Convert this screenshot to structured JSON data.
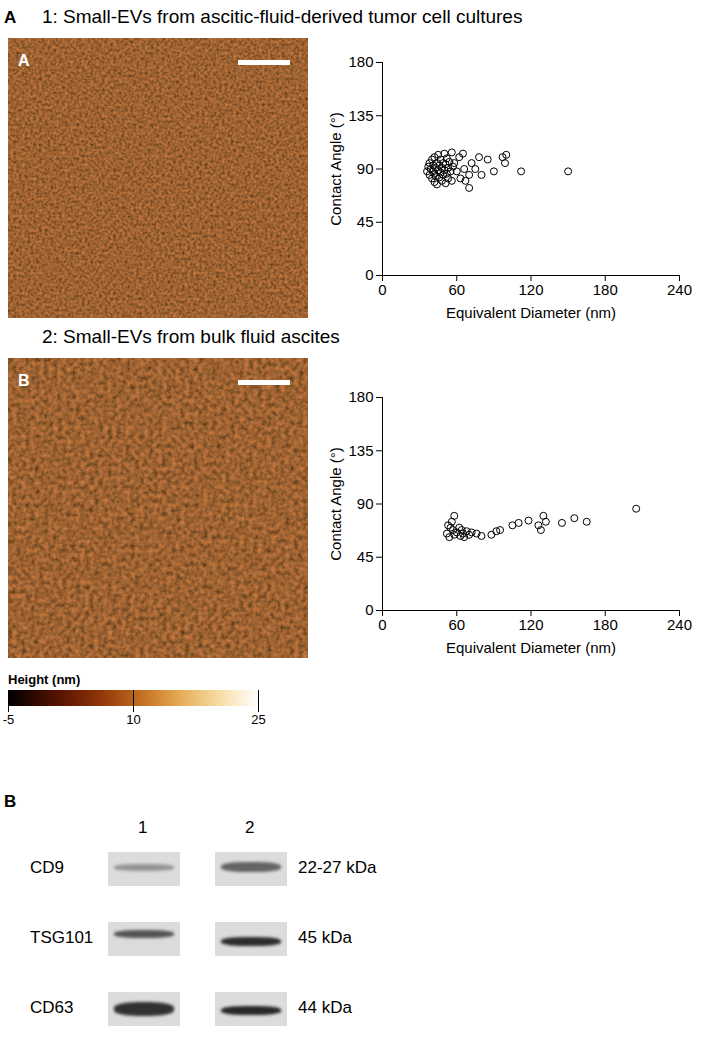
{
  "chart_data": [
    {
      "type": "scatter",
      "title": "1: Small-EVs from ascitic-fluid-derived tumor cell cultures",
      "x_label": "Equivalent Diameter (nm)",
      "y_label": "Contact Angle (°)",
      "x": [
        36,
        37,
        38,
        38,
        39,
        40,
        40,
        41,
        41,
        42,
        42,
        42,
        43,
        43,
        44,
        44,
        45,
        45,
        46,
        46,
        47,
        47,
        48,
        48,
        49,
        49,
        50,
        50,
        51,
        51,
        52,
        52,
        53,
        53,
        54,
        55,
        56,
        56,
        57,
        58,
        60,
        62,
        63,
        65,
        66,
        67,
        70,
        70,
        72,
        75,
        78,
        80,
        85,
        90,
        97,
        99,
        100,
        112,
        150
      ],
      "values": [
        88,
        92,
        85,
        95,
        90,
        82,
        98,
        88,
        93,
        79,
        86,
        100,
        91,
        84,
        95,
        77,
        89,
        102,
        83,
        93,
        87,
        98,
        80,
        91,
        95,
        85,
        103,
        89,
        78,
        94,
        86,
        99,
        91,
        82,
        96,
        88,
        104,
        80,
        92,
        95,
        88,
        100,
        82,
        103,
        90,
        80,
        85,
        74,
        95,
        90,
        100,
        85,
        98,
        88,
        100,
        95,
        102,
        88,
        88
      ],
      "xlim": [
        0,
        240
      ],
      "xticks": [
        0,
        60,
        120,
        180,
        240
      ],
      "ylim": [
        0,
        180
      ],
      "yticks": [
        0,
        45,
        90,
        135,
        180
      ],
      "marker": "circle",
      "color": "#000000",
      "grid": false
    },
    {
      "type": "scatter",
      "title": "2: Small-EVs from bulk fluid ascites",
      "x_label": "Equivalent Diameter (nm)",
      "y_label": "Contact Angle (°)",
      "x": [
        52,
        53,
        54,
        55,
        56,
        57,
        58,
        58,
        60,
        62,
        63,
        64,
        65,
        66,
        68,
        70,
        72,
        76,
        80,
        88,
        92,
        95,
        105,
        110,
        118,
        126,
        128,
        130,
        132,
        145,
        155,
        165,
        205
      ],
      "values": [
        65,
        72,
        62,
        70,
        75,
        68,
        80,
        64,
        66,
        70,
        63,
        68,
        65,
        62,
        67,
        64,
        66,
        65,
        63,
        64,
        67,
        68,
        72,
        74,
        76,
        72,
        68,
        80,
        75,
        74,
        78,
        75,
        86
      ],
      "xlim": [
        0,
        240
      ],
      "xticks": [
        0,
        60,
        120,
        180,
        240
      ],
      "ylim": [
        0,
        180
      ],
      "yticks": [
        0,
        45,
        90,
        135,
        180
      ],
      "marker": "circle",
      "color": "#000000",
      "grid": false
    }
  ],
  "panel_labels": [
    "A",
    "B"
  ],
  "afm_images": [
    {
      "label": "A"
    },
    {
      "label": "B"
    }
  ],
  "colorbar": {
    "label": "Height (nm)",
    "range": [
      -5,
      25
    ],
    "ticks": [
      -5,
      10,
      25
    ]
  },
  "western_blot": {
    "lanes": [
      "1",
      "2"
    ],
    "rows": [
      {
        "protein": "CD9",
        "size": "22-27 kDa"
      },
      {
        "protein": "TSG101",
        "size": "45 kDa"
      },
      {
        "protein": "CD63",
        "size": "44 kDa"
      }
    ]
  }
}
